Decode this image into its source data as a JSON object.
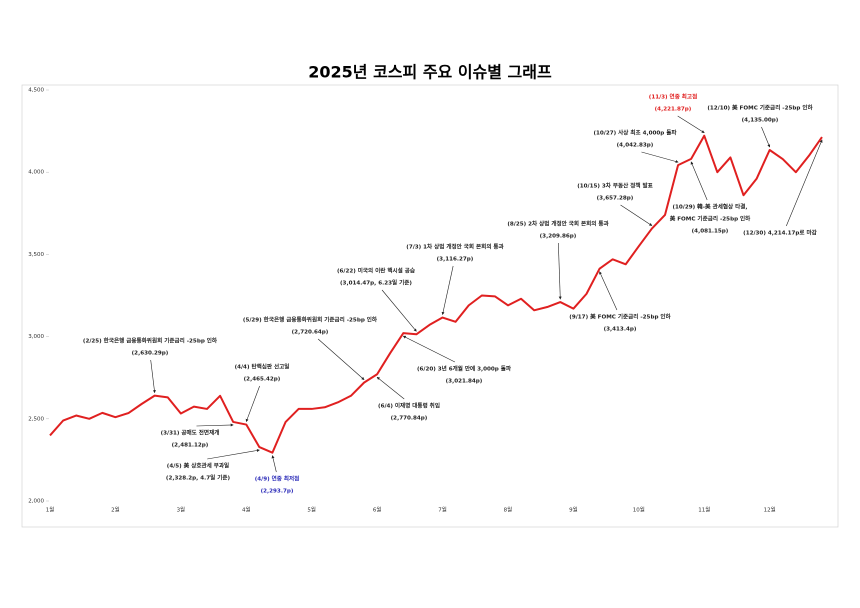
{
  "chart_data": {
    "type": "line",
    "title": "2025년  코스피 주요 이슈별 그래프",
    "categories": [
      "1월",
      null,
      null,
      null,
      null,
      "2월",
      null,
      null,
      null,
      null,
      "3월",
      null,
      null,
      null,
      null,
      "4월",
      null,
      null,
      null,
      null,
      "5월",
      null,
      null,
      null,
      null,
      "6월",
      null,
      null,
      null,
      null,
      "7월",
      null,
      null,
      null,
      null,
      "8월",
      null,
      null,
      null,
      null,
      "9월",
      null,
      null,
      null,
      null,
      "10월",
      null,
      null,
      null,
      null,
      "11월",
      null,
      null,
      null,
      null,
      "12월",
      null,
      null,
      null,
      null
    ],
    "series": [
      {
        "name": "KOSPI",
        "color": "#e02020",
        "values": [
          2399,
          2489,
          2520,
          2500,
          2536,
          2510,
          2535,
          2590,
          2641,
          2630,
          2532,
          2574,
          2560,
          2640,
          2481,
          2465,
          2328,
          2294,
          2480,
          2560,
          2560,
          2570,
          2600,
          2640,
          2720,
          2771,
          2900,
          3021,
          3014,
          3071,
          3116,
          3090,
          3190,
          3250,
          3245,
          3190,
          3230,
          3160,
          3180,
          3210,
          3170,
          3260,
          3413,
          3470,
          3440,
          3550,
          3657,
          3740,
          4043,
          4081,
          4222,
          4000,
          4090,
          3860,
          3960,
          4135,
          4080,
          4000,
          4100,
          4214
        ]
      }
    ],
    "ylim": [
      2000,
      4500
    ],
    "yticks": [
      {
        "value": 2000,
        "label": "2,000"
      },
      {
        "value": 2500,
        "label": "2,500"
      },
      {
        "value": 3000,
        "label": "3,000"
      },
      {
        "value": 3500,
        "label": "3,500"
      },
      {
        "value": 4000,
        "label": "4,000"
      },
      {
        "value": 4500,
        "label": "4,500"
      }
    ],
    "annotations": [
      {
        "lines": [
          "(2/25) 한국은행 금융통화위원회 기준금리 -25bp 인하",
          "(2,630.29p)"
        ],
        "color": "#222222"
      },
      {
        "lines": [
          "(3/31) 공매도 전면재개",
          "(2,481.12p)"
        ],
        "color": "#222222"
      },
      {
        "lines": [
          "(4/4) 탄핵심판 선고일",
          "(2,465.42p)"
        ],
        "color": "#222222"
      },
      {
        "lines": [
          "(4/5) 美 상호관세 부과일",
          "(2,328.2p, 4.7일 기준)"
        ],
        "color": "#222222"
      },
      {
        "lines": [
          "(4/9) 연중 최저점",
          "(2,293.7p)"
        ],
        "color": "#2a2ab8"
      },
      {
        "lines": [
          "(5/29) 한국은행 금융통화위원회 기준금리 -25bp 인하",
          "(2,720.64p)"
        ],
        "color": "#222222"
      },
      {
        "lines": [
          "(6/4) 이재명 대통령 취임",
          "(2,770.84p)"
        ],
        "color": "#222222"
      },
      {
        "lines": [
          "(6/20) 3년 6개월 만에 3,000p 돌파",
          "(3,021.84p)"
        ],
        "color": "#222222"
      },
      {
        "lines": [
          "(6/22) 미국의 이란 핵시설 공습",
          "(3,014.47p, 6.23일 기준)"
        ],
        "color": "#222222"
      },
      {
        "lines": [
          "(7/3) 1차 상법 개정안 국회 본회의 통과",
          "(3,116.27p)"
        ],
        "color": "#222222"
      },
      {
        "lines": [
          "(8/25) 2차 상법 개정안 국회 본회의 통과",
          "(3,209.86p)"
        ],
        "color": "#222222"
      },
      {
        "lines": [
          "(9/17) 美 FOMC 기준금리 -25bp 인하",
          "(3,413.4p)"
        ],
        "color": "#222222"
      },
      {
        "lines": [
          "(10/15) 3차 부동산 정책 발표",
          "(3,657.28p)"
        ],
        "color": "#222222"
      },
      {
        "lines": [
          "(10/27) 사상 최초 4,000p 돌파",
          "(4,042.83p)"
        ],
        "color": "#222222"
      },
      {
        "lines": [
          "(11/3) 연중 최고점",
          "(4,221.87p)"
        ],
        "color": "#e02020"
      },
      {
        "lines": [
          "(10/29) 韓-美 관세협상 타결,",
          "美 FOMC 기준금리 -25bp 인하",
          "(4,081.15p)"
        ],
        "color": "#222222"
      },
      {
        "lines": [
          "(12/10) 美 FOMC 기준금리 -25bp 인하",
          "(4,135.00p)"
        ],
        "color": "#222222"
      },
      {
        "lines": [
          "(12/30) 4,214.17p로 마감"
        ],
        "color": "#222222"
      }
    ]
  }
}
